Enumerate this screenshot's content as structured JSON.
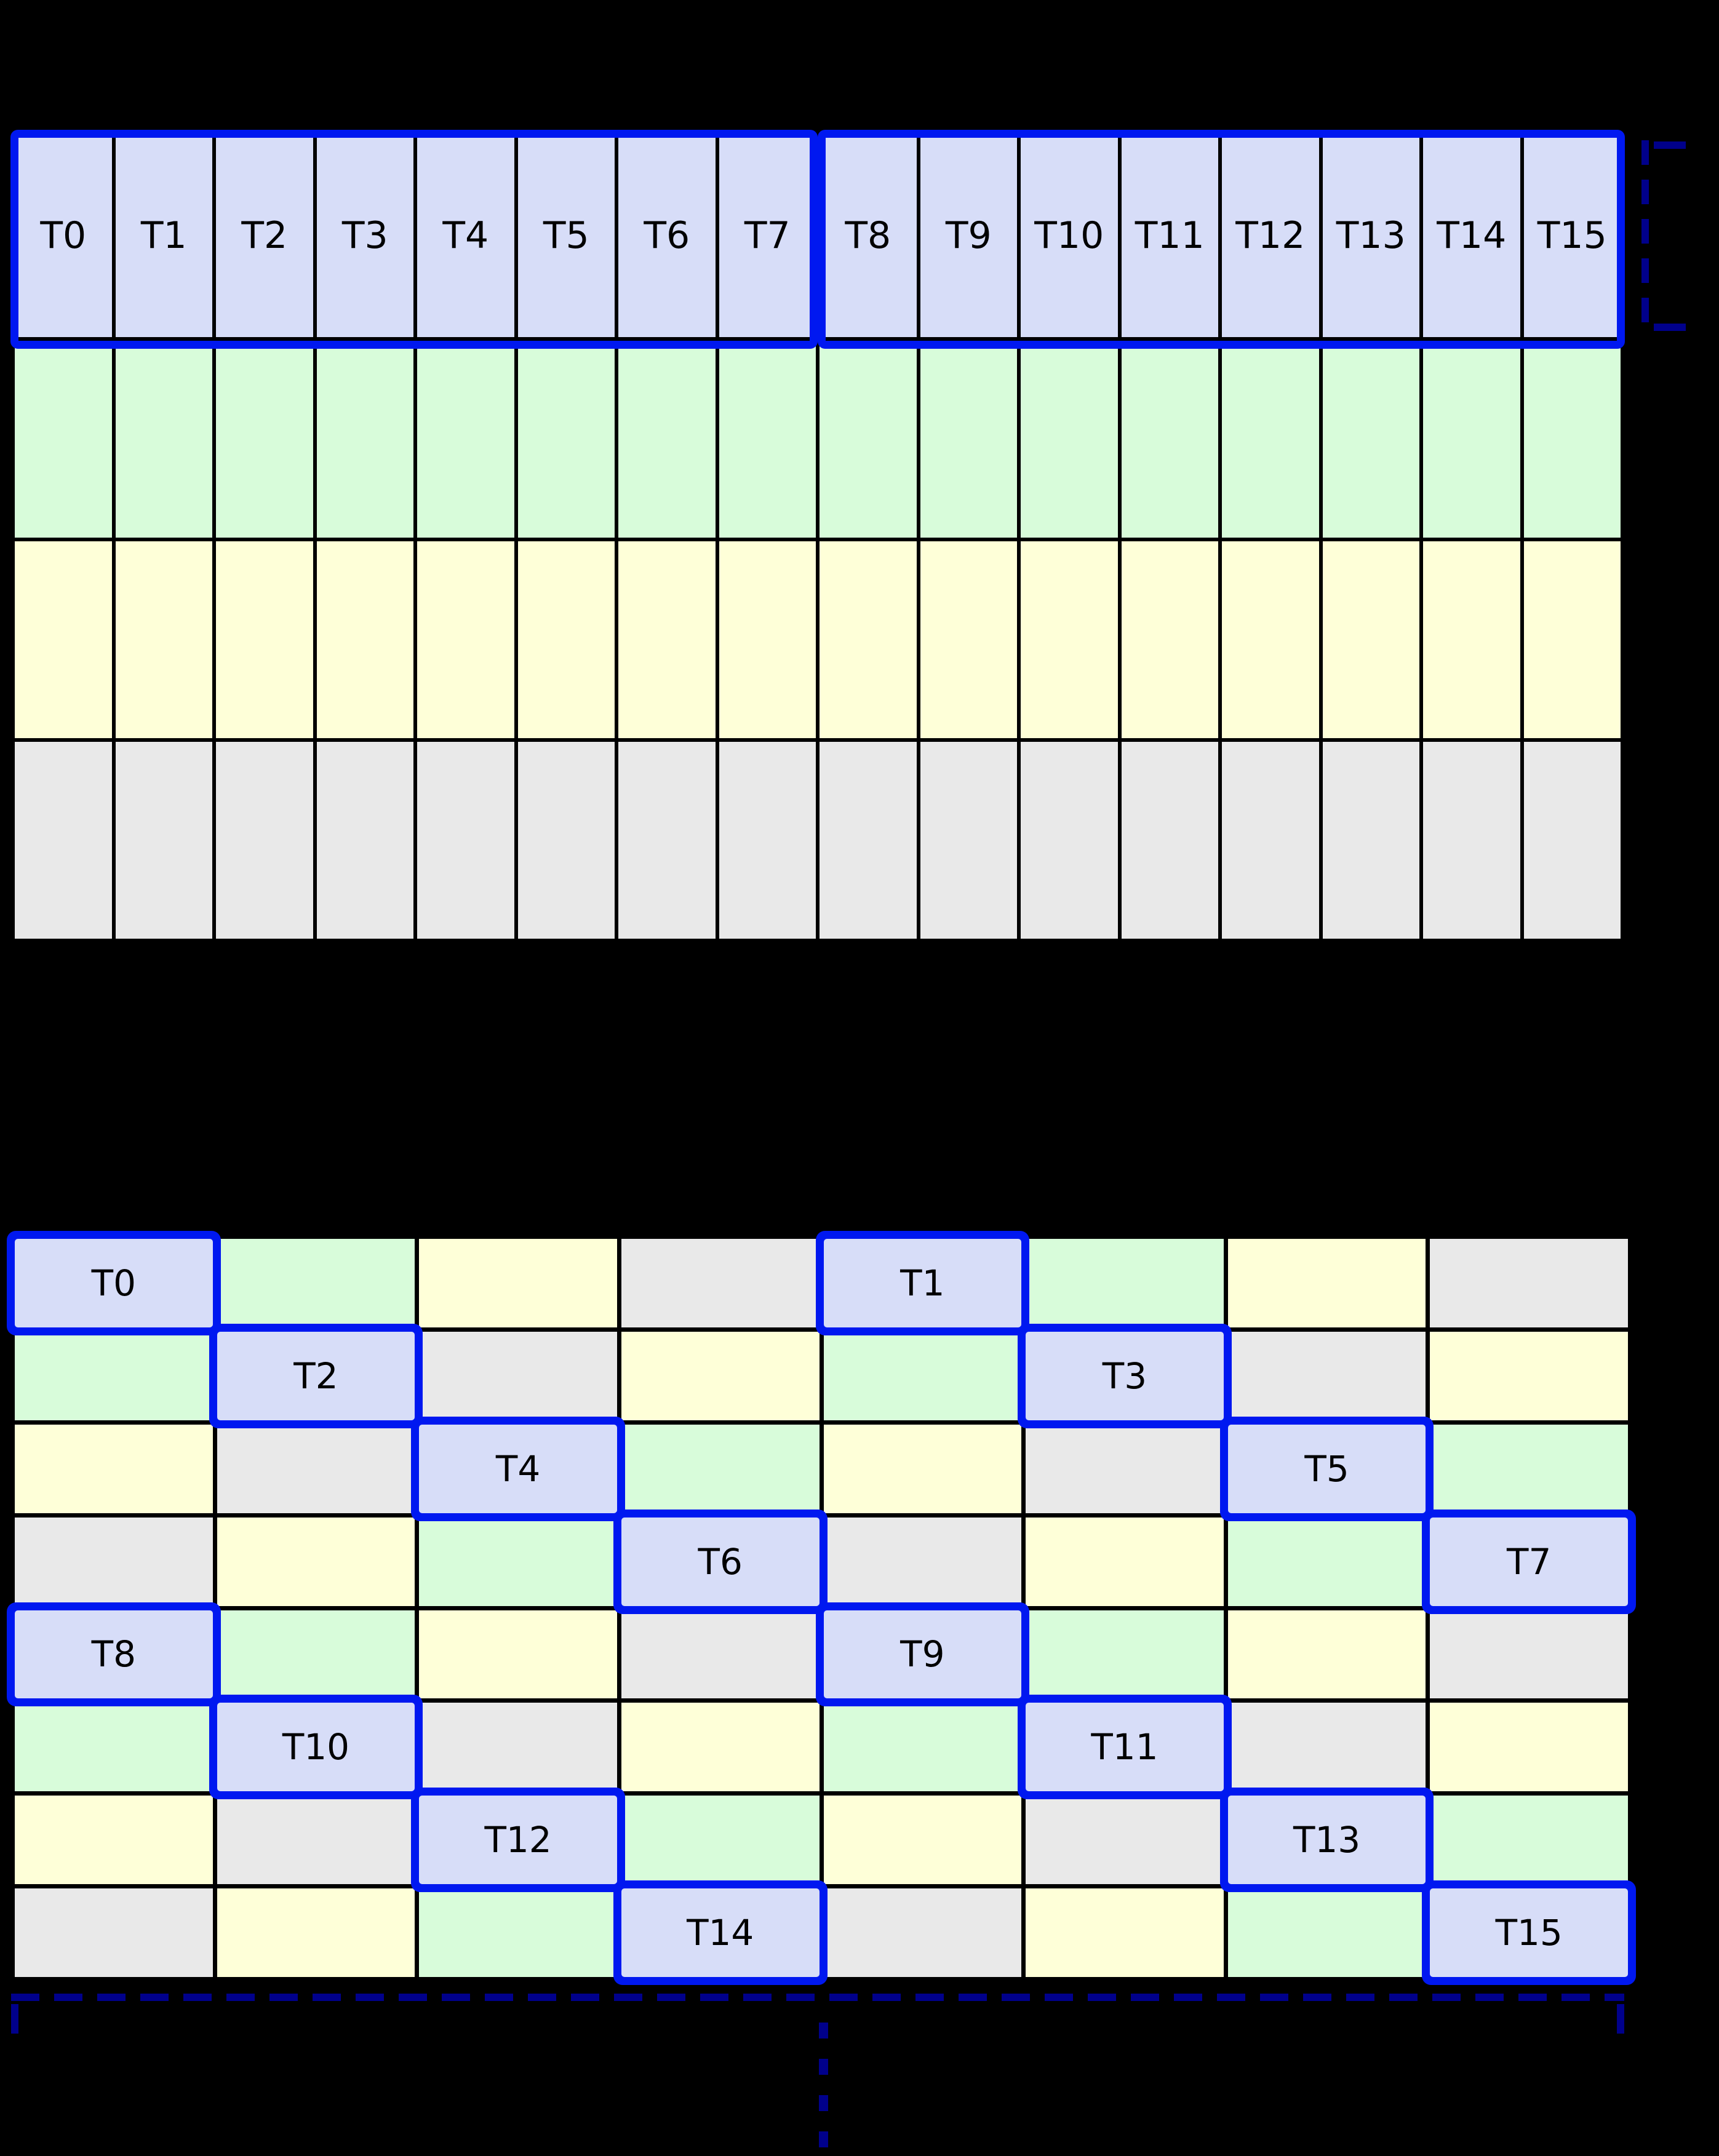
{
  "colors": {
    "background": "#000000",
    "thread_cell": "#d7ddf8",
    "green_cell": "#d8fcda",
    "yellow_cell": "#feffd8",
    "gray_cell": "#e9e9e9",
    "highlight_blue": "#0018f0",
    "bracket_navy": "#00008b"
  },
  "top_grid": {
    "columns": 16,
    "group_size": 8,
    "thread_labels": [
      "T0",
      "T1",
      "T2",
      "T3",
      "T4",
      "T5",
      "T6",
      "T7",
      "T8",
      "T9",
      "T10",
      "T11",
      "T12",
      "T13",
      "T14",
      "T15"
    ],
    "color_rows": [
      "green",
      "yellow",
      "gray"
    ]
  },
  "bottom_grid": {
    "columns": 8,
    "rows": [
      [
        "T0",
        "green",
        "yellow",
        "gray",
        "T1",
        "green",
        "yellow",
        "gray"
      ],
      [
        "green",
        "T2",
        "gray",
        "yellow",
        "green",
        "T3",
        "gray",
        "yellow"
      ],
      [
        "yellow",
        "gray",
        "T4",
        "green",
        "yellow",
        "gray",
        "T5",
        "green"
      ],
      [
        "gray",
        "yellow",
        "green",
        "T6",
        "gray",
        "yellow",
        "green",
        "T7"
      ],
      [
        "T8",
        "green",
        "yellow",
        "gray",
        "T9",
        "green",
        "yellow",
        "gray"
      ],
      [
        "green",
        "T10",
        "gray",
        "yellow",
        "green",
        "T11",
        "gray",
        "yellow"
      ],
      [
        "yellow",
        "gray",
        "T12",
        "green",
        "yellow",
        "gray",
        "T13",
        "green"
      ],
      [
        "gray",
        "yellow",
        "green",
        "T14",
        "gray",
        "yellow",
        "green",
        "T15"
      ]
    ]
  }
}
